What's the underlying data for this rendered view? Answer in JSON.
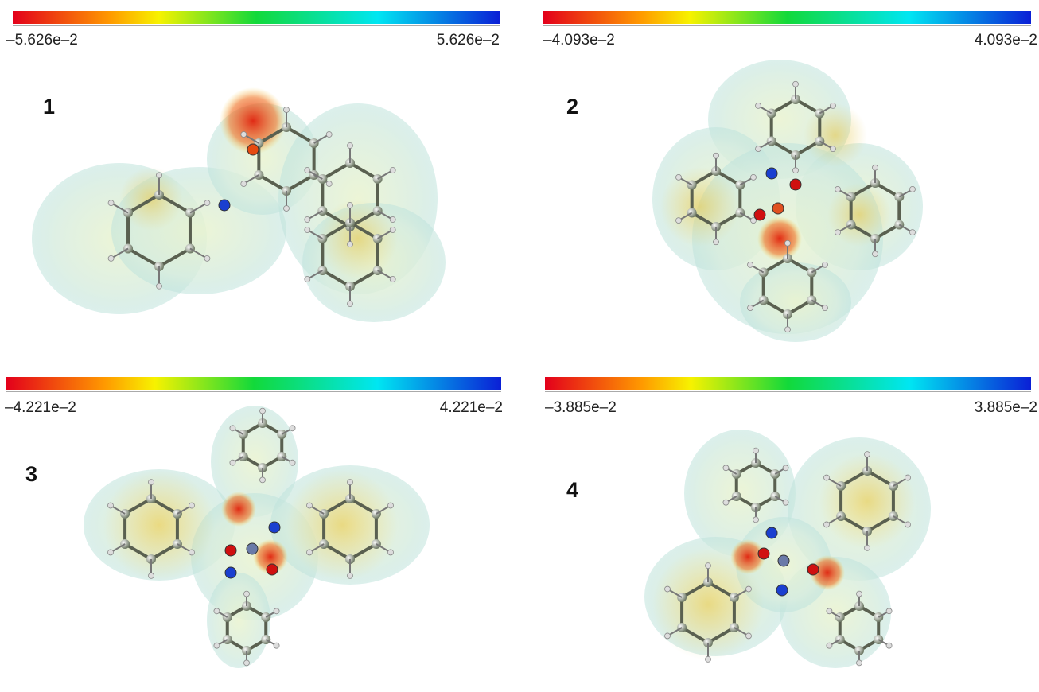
{
  "panels": [
    {
      "label": "1",
      "scale_min": "–5.626e–2",
      "scale_max": "5.626e–2"
    },
    {
      "label": "2",
      "scale_min": "–4.093e–2",
      "scale_max": "4.093e–2"
    },
    {
      "label": "3",
      "scale_min": "–4.221e–2",
      "scale_max": "4.221e–2"
    },
    {
      "label": "4",
      "scale_min": "–3.885e–2",
      "scale_max": "3.885e–2"
    }
  ]
}
